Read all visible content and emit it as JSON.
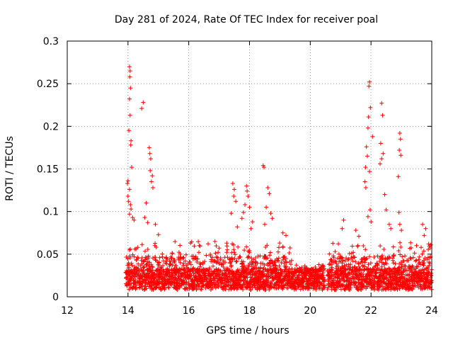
{
  "chart_data": {
    "type": "scatter",
    "title": "Day 281 of 2024, Rate Of TEC Index for receiver poal",
    "xlabel": "GPS time / hours",
    "ylabel": "ROTI / TECUs",
    "xlim": [
      12,
      24
    ],
    "ylim": [
      0,
      0.3
    ],
    "x_ticks": [
      "12",
      "14",
      "16",
      "18",
      "20",
      "22",
      "24"
    ],
    "y_ticks": [
      "0",
      "0.05",
      "0.1",
      "0.15",
      "0.2",
      "0.25",
      "0.3"
    ],
    "grid": true,
    "marker": "plus",
    "color": "#ff0000",
    "series": [
      {
        "name": "ROTI",
        "points": [
          [
            14.05,
            0.27
          ],
          [
            14.07,
            0.265
          ],
          [
            14.06,
            0.258
          ],
          [
            14.08,
            0.245
          ],
          [
            14.05,
            0.232
          ],
          [
            14.07,
            0.213
          ],
          [
            14.03,
            0.195
          ],
          [
            14.1,
            0.183
          ],
          [
            14.09,
            0.178
          ],
          [
            14.12,
            0.152
          ],
          [
            14.0,
            0.136
          ],
          [
            13.98,
            0.133
          ],
          [
            14.05,
            0.126
          ],
          [
            14.0,
            0.118
          ],
          [
            14.02,
            0.112
          ],
          [
            14.08,
            0.108
          ],
          [
            14.1,
            0.103
          ],
          [
            14.05,
            0.097
          ],
          [
            14.15,
            0.093
          ],
          [
            14.2,
            0.09
          ],
          [
            14.5,
            0.228
          ],
          [
            14.45,
            0.221
          ],
          [
            14.7,
            0.175
          ],
          [
            14.72,
            0.168
          ],
          [
            14.75,
            0.162
          ],
          [
            14.73,
            0.148
          ],
          [
            14.8,
            0.142
          ],
          [
            14.77,
            0.135
          ],
          [
            14.82,
            0.128
          ],
          [
            14.6,
            0.11
          ],
          [
            14.55,
            0.093
          ],
          [
            14.65,
            0.087
          ],
          [
            14.9,
            0.085
          ],
          [
            15.0,
            0.073
          ],
          [
            17.45,
            0.133
          ],
          [
            17.5,
            0.126
          ],
          [
            17.48,
            0.118
          ],
          [
            17.55,
            0.112
          ],
          [
            17.4,
            0.098
          ],
          [
            17.9,
            0.13
          ],
          [
            17.92,
            0.124
          ],
          [
            17.95,
            0.118
          ],
          [
            17.85,
            0.108
          ],
          [
            18.0,
            0.105
          ],
          [
            17.8,
            0.099
          ],
          [
            17.75,
            0.092
          ],
          [
            18.1,
            0.088
          ],
          [
            18.05,
            0.08
          ],
          [
            17.6,
            0.082
          ],
          [
            18.45,
            0.154
          ],
          [
            18.48,
            0.152
          ],
          [
            18.6,
            0.128
          ],
          [
            18.65,
            0.121
          ],
          [
            18.55,
            0.105
          ],
          [
            18.7,
            0.098
          ],
          [
            18.75,
            0.092
          ],
          [
            18.5,
            0.085
          ],
          [
            19.1,
            0.075
          ],
          [
            19.2,
            0.072
          ],
          [
            21.1,
            0.09
          ],
          [
            21.05,
            0.08
          ],
          [
            21.5,
            0.078
          ],
          [
            21.6,
            0.071
          ],
          [
            21.95,
            0.252
          ],
          [
            21.93,
            0.247
          ],
          [
            21.98,
            0.222
          ],
          [
            21.92,
            0.211
          ],
          [
            21.9,
            0.198
          ],
          [
            22.05,
            0.188
          ],
          [
            21.85,
            0.176
          ],
          [
            21.88,
            0.165
          ],
          [
            21.82,
            0.152
          ],
          [
            21.95,
            0.147
          ],
          [
            21.8,
            0.135
          ],
          [
            21.83,
            0.128
          ],
          [
            21.97,
            0.102
          ],
          [
            21.9,
            0.094
          ],
          [
            22.0,
            0.088
          ],
          [
            22.35,
            0.227
          ],
          [
            22.38,
            0.213
          ],
          [
            22.32,
            0.18
          ],
          [
            22.4,
            0.168
          ],
          [
            22.35,
            0.162
          ],
          [
            22.3,
            0.156
          ],
          [
            22.45,
            0.12
          ],
          [
            22.5,
            0.102
          ],
          [
            22.6,
            0.085
          ],
          [
            22.65,
            0.08
          ],
          [
            22.95,
            0.192
          ],
          [
            22.97,
            0.185
          ],
          [
            22.93,
            0.172
          ],
          [
            22.98,
            0.166
          ],
          [
            22.9,
            0.141
          ],
          [
            22.92,
            0.099
          ],
          [
            22.95,
            0.085
          ],
          [
            23.0,
            0.078
          ],
          [
            23.7,
            0.085
          ],
          [
            23.8,
            0.08
          ],
          [
            23.75,
            0.072
          ],
          [
            23.5,
            0.06
          ],
          [
            23.9,
            0.062
          ],
          [
            23.65,
            0.058
          ]
        ]
      }
    ]
  }
}
